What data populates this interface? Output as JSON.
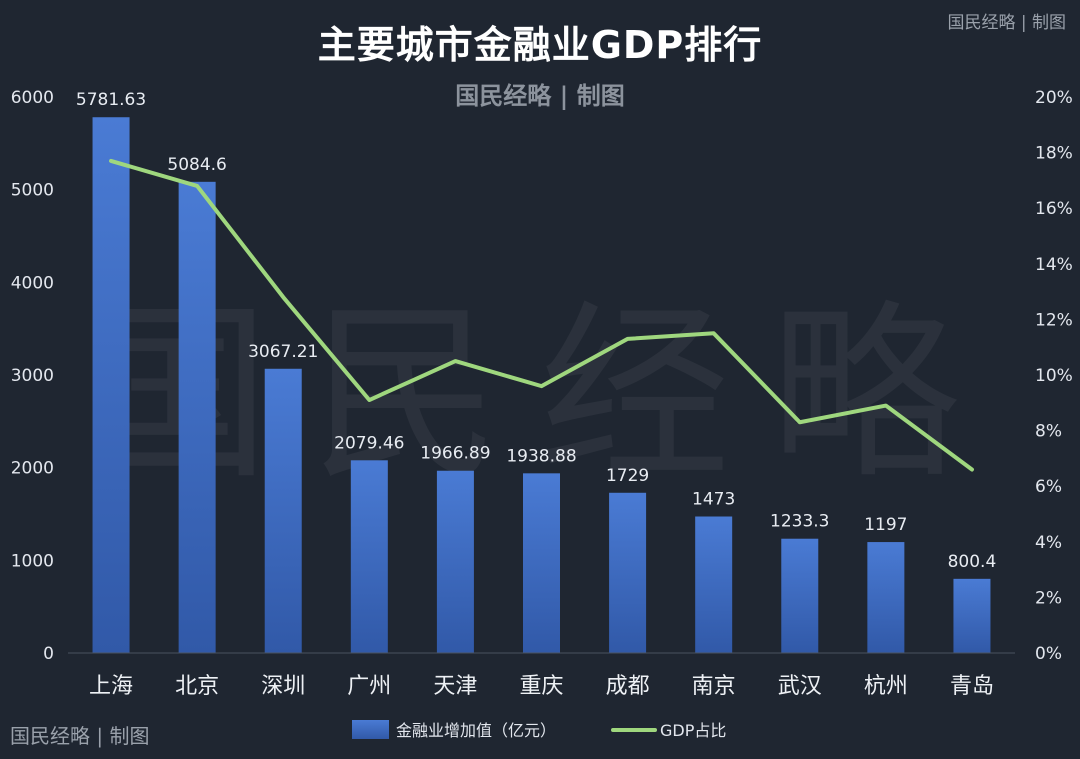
{
  "watermark": {
    "corner_top_right": "国民经略 | 制图",
    "subtitle_mark": "国民经略 | 制图",
    "corner_bottom_left": "国民经略 | 制图",
    "large_mark": "国民经略"
  },
  "colors": {
    "background": "#1f2631",
    "bar": "#4472c4",
    "line": "#9fd77e"
  },
  "chart_data": {
    "type": "bar",
    "title": "主要城市金融业GDP排行",
    "categories": [
      "上海",
      "北京",
      "深圳",
      "广州",
      "天津",
      "重庆",
      "成都",
      "南京",
      "武汉",
      "杭州",
      "青岛"
    ],
    "series": [
      {
        "name": "金融业增加值（亿元）",
        "type": "bar",
        "axis": "left",
        "values": [
          5781.63,
          5084.6,
          3067.21,
          2079.46,
          1966.89,
          1938.88,
          1729,
          1473,
          1233.3,
          1197,
          800.4
        ],
        "labels": [
          "5781.63",
          "5084.6",
          "3067.21",
          "2079.46",
          "1966.89",
          "1938.88",
          "1729",
          "1473",
          "1233.3",
          "1197",
          "800.4"
        ]
      },
      {
        "name": "GDP占比",
        "type": "line",
        "axis": "right",
        "values": [
          17.7,
          16.8,
          12.8,
          9.1,
          10.5,
          9.6,
          11.3,
          11.5,
          8.3,
          8.9,
          6.6
        ]
      }
    ],
    "ylim_left": [
      0,
      6000
    ],
    "yticks_left": [
      "0",
      "1000",
      "2000",
      "3000",
      "4000",
      "5000",
      "6000"
    ],
    "ylim_right": [
      0,
      20
    ],
    "yticks_right": [
      "0%",
      "2%",
      "4%",
      "6%",
      "8%",
      "10%",
      "12%",
      "14%",
      "16%",
      "18%",
      "20%"
    ],
    "grid": false,
    "legend_position": "bottom"
  }
}
